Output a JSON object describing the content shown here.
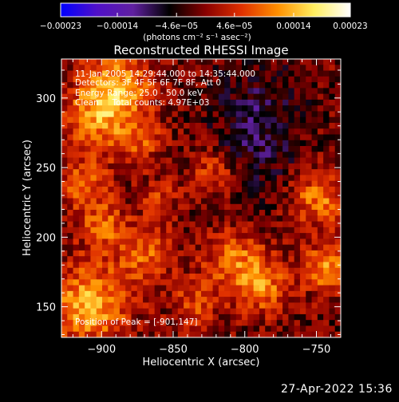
{
  "chart_data": {
    "type": "heatmap",
    "title": "Reconstructed RHESSI Image",
    "xlabel": "Heliocentric X (arcsec)",
    "ylabel": "Heliocentric Y (arcsec)",
    "xlim": [
      -928,
      -733
    ],
    "ylim": [
      128,
      328
    ],
    "x_ticks": [
      {
        "value": -900,
        "label": "−900"
      },
      {
        "value": -850,
        "label": "−850"
      },
      {
        "value": -800,
        "label": "−800"
      },
      {
        "value": -750,
        "label": "−750"
      }
    ],
    "y_ticks": [
      {
        "value": 150,
        "label": "150"
      },
      {
        "value": 200,
        "label": "200"
      },
      {
        "value": 250,
        "label": "250"
      },
      {
        "value": 300,
        "label": "300"
      }
    ],
    "colorbar": {
      "range": [
        -0.00023,
        0.00023
      ],
      "ticks": [
        {
          "value": -0.00023,
          "label": "−0.00023"
        },
        {
          "value": -0.00014,
          "label": "−0.00014"
        },
        {
          "value": -4.6e-05,
          "label": "−4.6e−05"
        },
        {
          "value": 4.6e-05,
          "label": "4.6e−05"
        },
        {
          "value": 0.00014,
          "label": "0.00014"
        },
        {
          "value": 0.00023,
          "label": "0.00023"
        }
      ],
      "unit_label": "(photons cm⁻² s⁻¹ asec⁻²)",
      "colors": [
        "#0000ff",
        "#5010c8",
        "#6020a0",
        "#000000",
        "#880000",
        "#e03000",
        "#ff9000",
        "#ffee60",
        "#ffffff"
      ]
    },
    "annotations": {
      "time": "11-Jan-2005 14:29:44.000 to 14:35:44.000",
      "detectors": "Detectors: 3F 4F 5F 6F 7F 8F, Att 0",
      "energy": "Energy Range: 25.0 - 50.0 keV",
      "method": "Clean     Total counts: 4.97E+03",
      "peak": "Position of Peak = [-901,147]"
    },
    "peak_position": [
      -901,
      147
    ]
  },
  "footer": {
    "date": "27-Apr-2022 15:36"
  }
}
